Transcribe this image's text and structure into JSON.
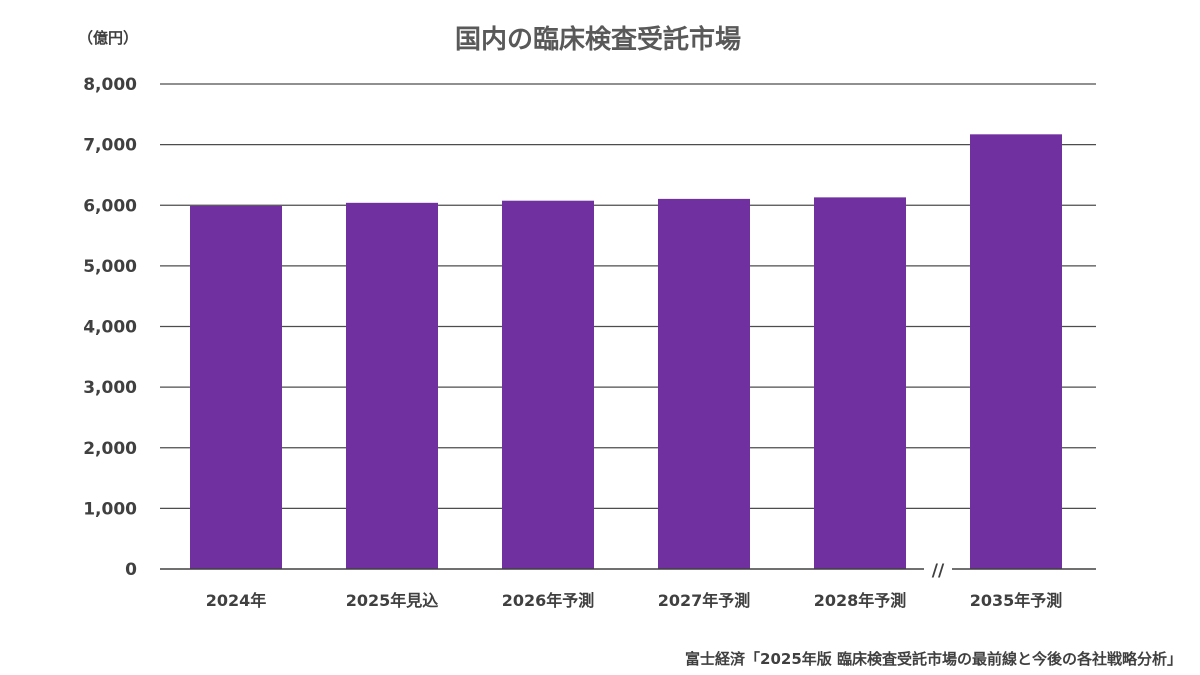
{
  "chart_data": {
    "type": "bar",
    "title": "国内の臨床検査受託市場",
    "unit_label": "（億円）",
    "categories": [
      "2024年",
      "2025年見込",
      "2026年予測",
      "2027年予測",
      "2028年予測",
      "2035年予測"
    ],
    "values": [
      5990,
      6040,
      6075,
      6105,
      6130,
      7170
    ],
    "ylim": [
      0,
      8000
    ],
    "yticks": [
      "0",
      "1,000",
      "2,000",
      "3,000",
      "4,000",
      "5,000",
      "6,000",
      "7,000",
      "8,000"
    ],
    "ytick_values": [
      0,
      1000,
      2000,
      3000,
      4000,
      5000,
      6000,
      7000,
      8000
    ],
    "grid": true,
    "axis_break_between": [
      "2028年予測",
      "2035年予測"
    ],
    "axis_break_label": "//",
    "bar_color": "#7030a0",
    "legend": "none"
  },
  "source": "富士経済「2025年版 臨床検査受託市場の最前線と今後の各社戦略分析」"
}
